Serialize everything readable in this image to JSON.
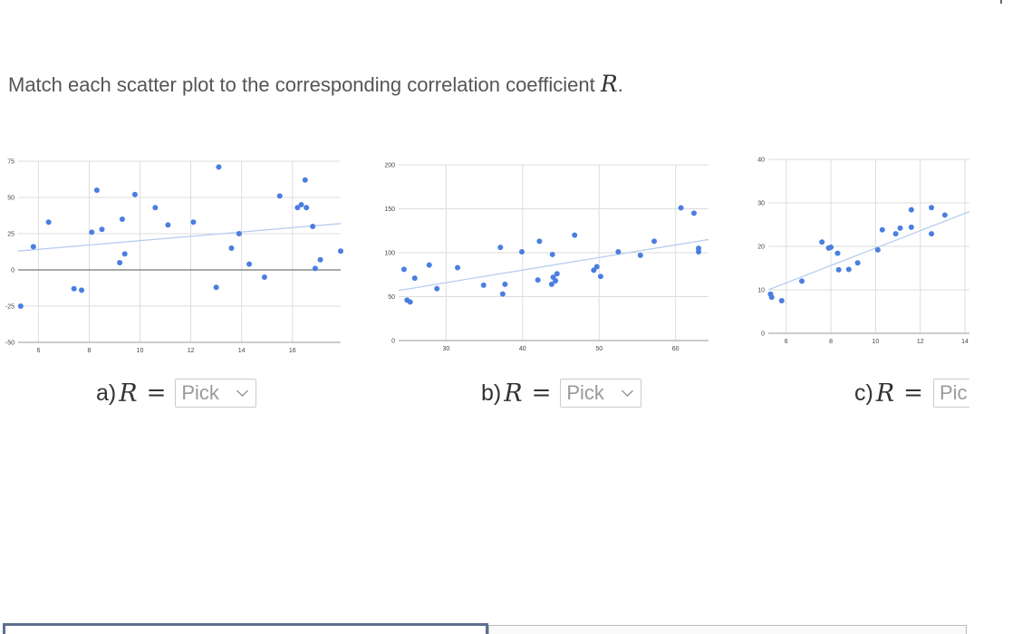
{
  "question": {
    "text": "Match each scatter plot to the corresponding correlation coefficient ",
    "variable": "R",
    "end": "."
  },
  "answers": [
    {
      "label": "a)",
      "variable": "R",
      "equals": "=",
      "placeholder": "Pick"
    },
    {
      "label": "b)",
      "variable": "R",
      "equals": "=",
      "placeholder": "Pick"
    },
    {
      "label": "c)",
      "variable": "R",
      "equals": "=",
      "placeholder": "Pic"
    }
  ],
  "icons": {
    "select": "chevron-down-icon"
  },
  "colors": {
    "point": "#4a7ee0",
    "trendline": "#b7cdf0",
    "grid": "#dddddd",
    "zero_axis": "#555555"
  },
  "chart_data": [
    {
      "type": "scatter",
      "xlim": [
        5.2,
        17.9
      ],
      "ylim": [
        -50,
        75
      ],
      "xticks": [
        6,
        8,
        10,
        12,
        14,
        16
      ],
      "yticks": [
        75,
        50,
        25,
        0,
        -25,
        -50
      ],
      "trendline": {
        "x": [
          5.2,
          17.9
        ],
        "y": [
          13,
          32
        ]
      },
      "zero_line": true,
      "points": [
        {
          "x": 5.3,
          "y": -25
        },
        {
          "x": 5.8,
          "y": 16
        },
        {
          "x": 6.4,
          "y": 33
        },
        {
          "x": 7.4,
          "y": -13
        },
        {
          "x": 7.7,
          "y": -14
        },
        {
          "x": 8.1,
          "y": 26
        },
        {
          "x": 8.3,
          "y": 55
        },
        {
          "x": 8.5,
          "y": 28
        },
        {
          "x": 9.2,
          "y": 5
        },
        {
          "x": 9.3,
          "y": 35
        },
        {
          "x": 9.4,
          "y": 11
        },
        {
          "x": 9.8,
          "y": 52
        },
        {
          "x": 10.6,
          "y": 43
        },
        {
          "x": 11.1,
          "y": 31
        },
        {
          "x": 12.1,
          "y": 33
        },
        {
          "x": 13.0,
          "y": -12
        },
        {
          "x": 13.1,
          "y": 71
        },
        {
          "x": 13.6,
          "y": 15
        },
        {
          "x": 13.9,
          "y": 25
        },
        {
          "x": 14.3,
          "y": 4
        },
        {
          "x": 14.9,
          "y": -5
        },
        {
          "x": 15.5,
          "y": 51
        },
        {
          "x": 16.2,
          "y": 43
        },
        {
          "x": 16.35,
          "y": 45
        },
        {
          "x": 16.5,
          "y": 62
        },
        {
          "x": 16.55,
          "y": 43
        },
        {
          "x": 16.8,
          "y": 30
        },
        {
          "x": 16.9,
          "y": 1
        },
        {
          "x": 17.1,
          "y": 7
        },
        {
          "x": 17.9,
          "y": 13
        }
      ]
    },
    {
      "type": "scatter",
      "xlim": [
        23.8,
        64.3
      ],
      "ylim": [
        0,
        200
      ],
      "xticks": [
        30,
        40,
        50,
        60
      ],
      "yticks": [
        200,
        150,
        100,
        50,
        0
      ],
      "trendline": {
        "x": [
          23.8,
          64.3
        ],
        "y": [
          57,
          115
        ]
      },
      "zero_line": false,
      "points": [
        {
          "x": 24.5,
          "y": 81
        },
        {
          "x": 24.9,
          "y": 46
        },
        {
          "x": 25.3,
          "y": 44
        },
        {
          "x": 25.9,
          "y": 71
        },
        {
          "x": 27.8,
          "y": 86
        },
        {
          "x": 28.8,
          "y": 59
        },
        {
          "x": 31.5,
          "y": 83
        },
        {
          "x": 34.9,
          "y": 63
        },
        {
          "x": 37.1,
          "y": 106
        },
        {
          "x": 37.4,
          "y": 53
        },
        {
          "x": 37.7,
          "y": 64
        },
        {
          "x": 39.9,
          "y": 101
        },
        {
          "x": 42.0,
          "y": 69
        },
        {
          "x": 42.2,
          "y": 113
        },
        {
          "x": 43.9,
          "y": 98
        },
        {
          "x": 43.8,
          "y": 64
        },
        {
          "x": 44.0,
          "y": 72
        },
        {
          "x": 44.5,
          "y": 76
        },
        {
          "x": 44.3,
          "y": 68
        },
        {
          "x": 46.8,
          "y": 120
        },
        {
          "x": 49.3,
          "y": 80
        },
        {
          "x": 49.7,
          "y": 84
        },
        {
          "x": 50.2,
          "y": 73
        },
        {
          "x": 52.5,
          "y": 101
        },
        {
          "x": 55.4,
          "y": 97
        },
        {
          "x": 57.2,
          "y": 113
        },
        {
          "x": 60.7,
          "y": 151
        },
        {
          "x": 62.4,
          "y": 145
        },
        {
          "x": 63.0,
          "y": 105
        },
        {
          "x": 63.0,
          "y": 101
        }
      ]
    },
    {
      "type": "scatter",
      "xlim": [
        5.2,
        14.2
      ],
      "ylim": [
        0,
        40
      ],
      "xticks": [
        6,
        8,
        10,
        12,
        14
      ],
      "yticks": [
        40,
        30,
        20,
        10,
        0
      ],
      "trendline": {
        "x": [
          5.2,
          14.2
        ],
        "y": [
          10,
          28
        ]
      },
      "zero_line": false,
      "points": [
        {
          "x": 5.3,
          "y": 9
        },
        {
          "x": 5.35,
          "y": 8.3
        },
        {
          "x": 5.8,
          "y": 7.5
        },
        {
          "x": 6.7,
          "y": 12
        },
        {
          "x": 7.6,
          "y": 21
        },
        {
          "x": 7.9,
          "y": 19.6
        },
        {
          "x": 8.0,
          "y": 19.8
        },
        {
          "x": 8.3,
          "y": 18.4
        },
        {
          "x": 8.35,
          "y": 14.6
        },
        {
          "x": 8.8,
          "y": 14.7
        },
        {
          "x": 9.2,
          "y": 16.2
        },
        {
          "x": 10.1,
          "y": 19.2
        },
        {
          "x": 10.3,
          "y": 23.8
        },
        {
          "x": 10.9,
          "y": 22.9
        },
        {
          "x": 11.1,
          "y": 24.2
        },
        {
          "x": 11.6,
          "y": 28.4
        },
        {
          "x": 11.6,
          "y": 24.4
        },
        {
          "x": 12.5,
          "y": 28.9
        },
        {
          "x": 12.5,
          "y": 22.9
        },
        {
          "x": 13.1,
          "y": 27.2
        }
      ]
    }
  ]
}
